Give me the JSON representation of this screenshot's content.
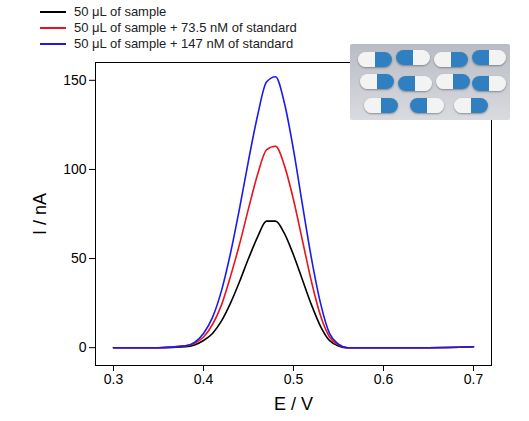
{
  "chart_data": {
    "type": "line",
    "xlabel": "E / V",
    "ylabel": "I / nA",
    "x": [
      0.3,
      0.35,
      0.38,
      0.39,
      0.4,
      0.41,
      0.42,
      0.43,
      0.44,
      0.45,
      0.46,
      0.47,
      0.48,
      0.49,
      0.5,
      0.51,
      0.52,
      0.53,
      0.54,
      0.55,
      0.56,
      0.6,
      0.65,
      0.7
    ],
    "series": [
      {
        "name": "50 μL of sample",
        "color": "#000000",
        "values": [
          0,
          0,
          0.5,
          1.5,
          4,
          8,
          15,
          25,
          37,
          50,
          62,
          71,
          71,
          64,
          52,
          38,
          24,
          12,
          4,
          1,
          0,
          0,
          0,
          0.5
        ]
      },
      {
        "name": "50 μL of sample + 73.5 nM of standard",
        "color": "#e8141c",
        "values": [
          0,
          0,
          1,
          2.5,
          6,
          13,
          24,
          40,
          58,
          78,
          97,
          111,
          113,
          102,
          83,
          60,
          37,
          18,
          6,
          1.5,
          0,
          0,
          0,
          0.5
        ]
      },
      {
        "name": "50 μL of sample + 147 nM of standard",
        "color": "#1a1aeb",
        "values": [
          0,
          0,
          1,
          3,
          8,
          17,
          32,
          53,
          78,
          105,
          130,
          149,
          152,
          137,
          111,
          80,
          50,
          25,
          8,
          2,
          0,
          0,
          0,
          0.5
        ]
      }
    ],
    "xlim": [
      0.28,
      0.72
    ],
    "ylim": [
      -10,
      160
    ],
    "xticks": [
      0.3,
      0.4,
      0.5,
      0.6,
      0.7
    ],
    "yticks": [
      0,
      50,
      100,
      150
    ],
    "legend": "top-left"
  }
}
